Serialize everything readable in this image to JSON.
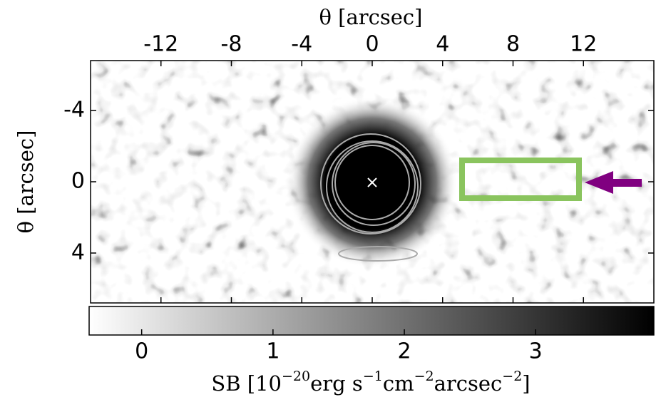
{
  "chart_data": {
    "type": "image",
    "x_label": "θ [arcsec]",
    "y_label": "θ [arcsec]",
    "xlim": [
      -16,
      16
    ],
    "xticks": [
      -12,
      -8,
      -4,
      0,
      4,
      8,
      12
    ],
    "ylim": [
      -6.8,
      6.8
    ],
    "yticks": [
      -4,
      0,
      4
    ],
    "colorbar": {
      "lim": [
        -0.4,
        3.9
      ],
      "ticks": [
        0,
        1,
        2,
        3
      ],
      "label_parts": [
        "SB [10",
        "−20",
        "erg s",
        "−1",
        "cm",
        "−2",
        "arcsec",
        "−2",
        "]"
      ]
    }
  }
}
